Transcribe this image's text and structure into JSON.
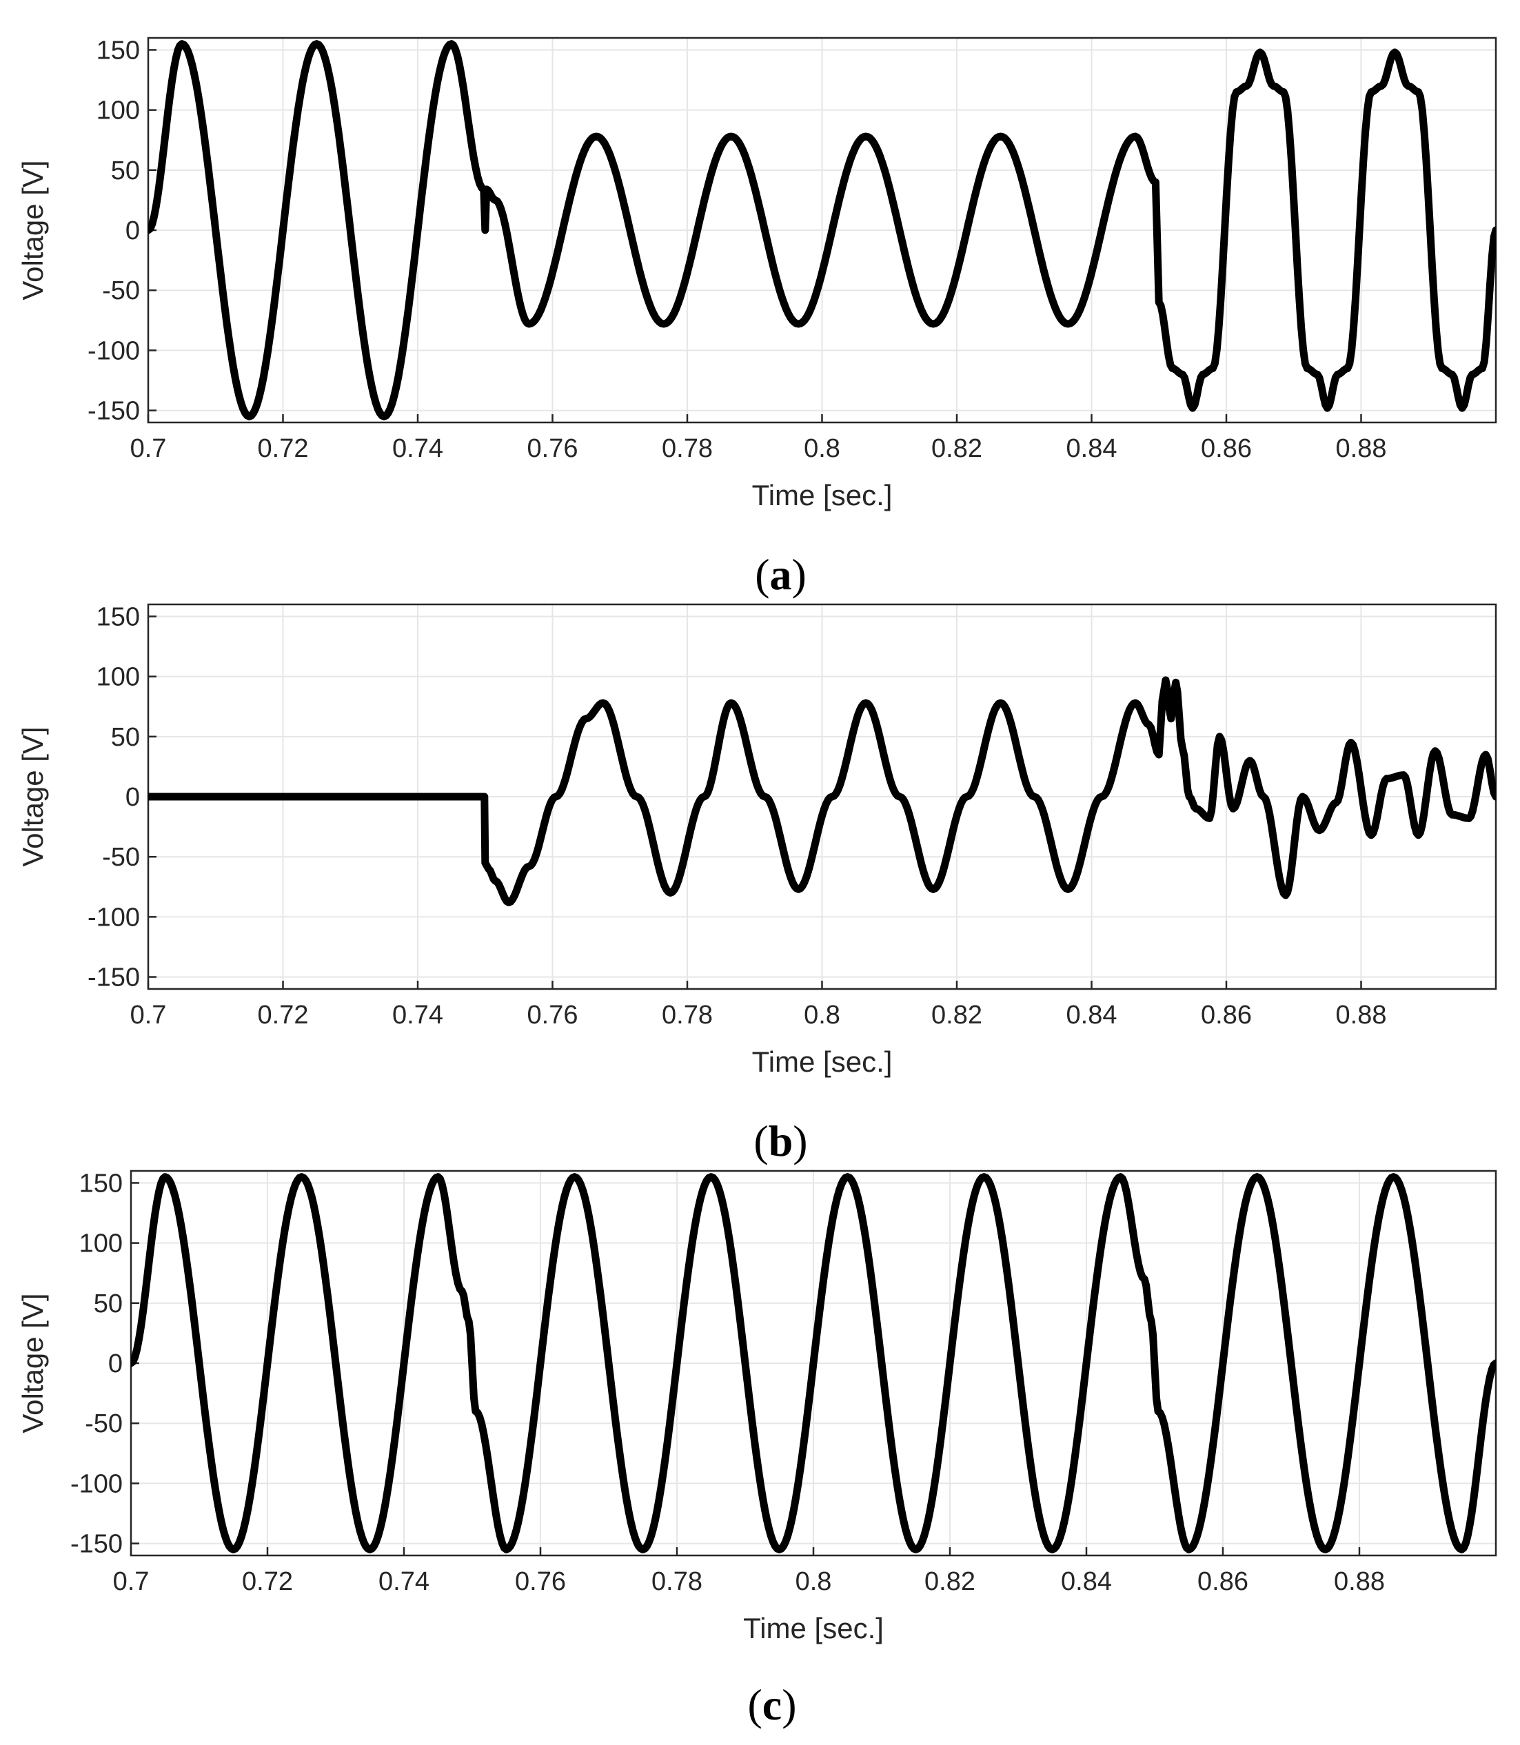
{
  "chart_data": [
    {
      "type": "line",
      "panel": "a",
      "caption_letter": "a",
      "xlabel": "Time [sec.]",
      "ylabel": "Voltage [V]",
      "xlim": [
        0.7,
        0.9
      ],
      "ylim": [
        -160,
        160
      ],
      "xticks": [
        0.7,
        0.72,
        0.74,
        0.76,
        0.78,
        0.8,
        0.82,
        0.84,
        0.86,
        0.88
      ],
      "xtick_labels": [
        "0.7",
        "0.72",
        "0.74",
        "0.76",
        "0.78",
        "0.8",
        "0.82",
        "0.84",
        "0.86",
        "0.88"
      ],
      "yticks": [
        150,
        100,
        50,
        0,
        -50,
        -100,
        -150
      ],
      "ytick_labels": [
        "150",
        "100",
        "50",
        "0",
        "-50",
        "-100",
        "-150"
      ],
      "grid": true,
      "series": [
        {
          "color": "#000000",
          "x": [
            0.7,
            0.705,
            0.715,
            0.725,
            0.735,
            0.745,
            0.7498,
            0.75,
            0.7502,
            0.7515,
            0.7565,
            0.7665,
            0.7765,
            0.7865,
            0.7965,
            0.8065,
            0.8165,
            0.8265,
            0.8365,
            0.8465,
            0.8495,
            0.85,
            0.852,
            0.8535,
            0.855,
            0.8565,
            0.858,
            0.8615,
            0.863,
            0.865,
            0.867,
            0.8685,
            0.872,
            0.8735,
            0.875,
            0.8765,
            0.878,
            0.8815,
            0.883,
            0.885,
            0.887,
            0.8885,
            0.892,
            0.8935,
            0.895,
            0.8965,
            0.898,
            0.9
          ],
          "y": [
            0,
            155,
            -155,
            155,
            -155,
            155,
            34,
            0,
            34,
            25,
            -78,
            78,
            -78,
            78,
            -78,
            78,
            -78,
            78,
            -78,
            78,
            40,
            -60,
            -115,
            -120,
            -148,
            -120,
            -115,
            115,
            120,
            148,
            120,
            115,
            -115,
            -120,
            -148,
            -120,
            -115,
            115,
            120,
            148,
            120,
            115,
            -115,
            -120,
            -148,
            -120,
            -115,
            0
          ]
        }
      ]
    },
    {
      "type": "line",
      "panel": "b",
      "caption_letter": "b",
      "xlabel": "Time [sec.]",
      "ylabel": "Voltage [V]",
      "xlim": [
        0.7,
        0.9
      ],
      "ylim": [
        -160,
        160
      ],
      "xticks": [
        0.7,
        0.72,
        0.74,
        0.76,
        0.78,
        0.8,
        0.82,
        0.84,
        0.86,
        0.88
      ],
      "xtick_labels": [
        "0.7",
        "0.72",
        "0.74",
        "0.76",
        "0.78",
        "0.8",
        "0.82",
        "0.84",
        "0.86",
        "0.88"
      ],
      "yticks": [
        150,
        100,
        50,
        0,
        -50,
        -100,
        -150
      ],
      "ytick_labels": [
        "150",
        "100",
        "50",
        "0",
        "-50",
        "-100",
        "-150"
      ],
      "grid": true,
      "series": [
        {
          "color": "#000000",
          "x": [
            0.7,
            0.74,
            0.7499,
            0.75,
            0.7505,
            0.7515,
            0.7535,
            0.7565,
            0.7605,
            0.765,
            0.7675,
            0.7725,
            0.7775,
            0.7825,
            0.7865,
            0.7915,
            0.7965,
            0.8015,
            0.8065,
            0.8115,
            0.8165,
            0.8215,
            0.8265,
            0.8315,
            0.8365,
            0.8415,
            0.8465,
            0.8485,
            0.85,
            0.8505,
            0.851,
            0.8518,
            0.8525,
            0.8535,
            0.8545,
            0.8555,
            0.8575,
            0.859,
            0.861,
            0.8635,
            0.8655,
            0.8688,
            0.8713,
            0.8738,
            0.8763,
            0.8785,
            0.8815,
            0.8838,
            0.8863,
            0.8885,
            0.891,
            0.8935,
            0.896,
            0.8985,
            0.9
          ],
          "y": [
            0,
            0,
            0,
            -55,
            -60,
            -70,
            -88,
            -58,
            0,
            65,
            78,
            0,
            -80,
            0,
            78,
            0,
            -77,
            0,
            78,
            0,
            -77,
            0,
            78,
            0,
            -77,
            0,
            78,
            60,
            35,
            80,
            97,
            65,
            95,
            40,
            0,
            -10,
            -18,
            50,
            -10,
            30,
            0,
            -82,
            0,
            -28,
            -5,
            45,
            -32,
            15,
            18,
            -32,
            38,
            -15,
            -18,
            35,
            0
          ]
        }
      ]
    },
    {
      "type": "line",
      "panel": "c",
      "caption_letter": "c",
      "xlabel": "Time [sec.]",
      "ylabel": "Voltage [V]",
      "xlim": [
        0.7,
        0.9
      ],
      "ylim": [
        -160,
        160
      ],
      "xticks": [
        0.7,
        0.72,
        0.74,
        0.76,
        0.78,
        0.8,
        0.82,
        0.84,
        0.86,
        0.88
      ],
      "xtick_labels": [
        "0.7",
        "0.72",
        "0.74",
        "0.76",
        "0.78",
        "0.8",
        "0.82",
        "0.84",
        "0.86",
        "0.88"
      ],
      "yticks": [
        150,
        100,
        50,
        0,
        -50,
        -100,
        -150
      ],
      "ytick_labels": [
        "150",
        "100",
        "50",
        "0",
        "-50",
        "-100",
        "-150"
      ],
      "grid": true,
      "series": [
        {
          "color": "#000000",
          "x": [
            0.7,
            0.705,
            0.715,
            0.725,
            0.735,
            0.745,
            0.7485,
            0.7495,
            0.7505,
            0.755,
            0.765,
            0.775,
            0.785,
            0.795,
            0.805,
            0.815,
            0.825,
            0.835,
            0.845,
            0.8485,
            0.8495,
            0.8505,
            0.855,
            0.865,
            0.875,
            0.885,
            0.895,
            0.9
          ],
          "y": [
            0,
            155,
            -155,
            155,
            -155,
            155,
            60,
            35,
            -40,
            -155,
            155,
            -155,
            155,
            -155,
            155,
            -155,
            155,
            -155,
            155,
            70,
            35,
            -40,
            -155,
            155,
            -155,
            155,
            -155,
            0
          ]
        }
      ]
    }
  ]
}
